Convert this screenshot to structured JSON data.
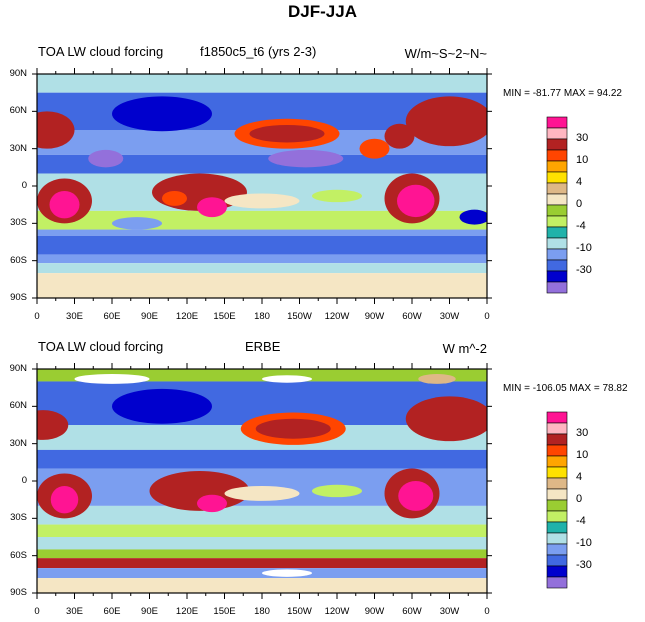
{
  "title": "DJF-JJA",
  "panels": [
    {
      "left_title": "TOA LW cloud forcing",
      "center_title": "f1850c5_t6 (yrs 2-3)",
      "right_title": "W/m~S~2~N~",
      "minmax": "MIN = -81.77 MAX =  94.22"
    },
    {
      "left_title": "TOA LW cloud forcing",
      "center_title": "ERBE",
      "right_title": "W m^-2",
      "minmax": "MIN = -106.05 MAX =  78.82"
    }
  ],
  "lat_labels": [
    "90N",
    "60N",
    "30N",
    "0",
    "30S",
    "60S",
    "90S"
  ],
  "lon_labels": [
    "0",
    "30E",
    "60E",
    "90E",
    "120E",
    "150E",
    "180",
    "150W",
    "120W",
    "90W",
    "60W",
    "30W",
    "0"
  ],
  "colorbar": {
    "colors": [
      "#ff1493",
      "#ffb6c1",
      "#b22222",
      "#ff4500",
      "#ffa500",
      "#ffe100",
      "#deb887",
      "#f5e6c4",
      "#9acd32",
      "#c2f064",
      "#20b2aa",
      "#b0e0e6",
      "#7b9ef0",
      "#4169e1",
      "#0000cd",
      "#9370db"
    ],
    "labels": [
      "30",
      "10",
      "4",
      "0",
      "-4",
      "-10",
      "-30"
    ]
  }
}
